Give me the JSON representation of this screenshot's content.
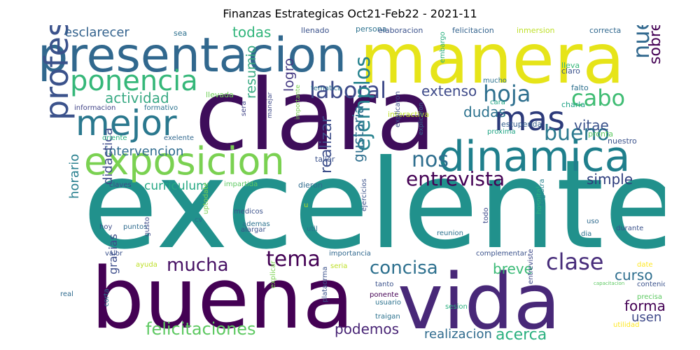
{
  "title": "Finanzas Estrategicas Oct21-Feb22 - 2021-11",
  "words": [
    {
      "text": "excelente",
      "color": "#21918c"
    },
    {
      "text": "buena",
      "color": "#440154"
    },
    {
      "text": "clara",
      "color": "#3e0d5a"
    },
    {
      "text": "vida",
      "color": "#482878"
    },
    {
      "text": "manera",
      "color": "#e6e419"
    },
    {
      "text": "presentacion",
      "color": "#31688e"
    },
    {
      "text": "dinamica",
      "color": "#1f7f8c"
    },
    {
      "text": "exposicion",
      "color": "#7ad151"
    },
    {
      "text": "profesional",
      "color": "#3b528b"
    },
    {
      "text": "mejor",
      "color": "#2a788e"
    },
    {
      "text": "mas",
      "color": "#2c3a7a"
    },
    {
      "text": "ponencia",
      "color": "#35b779"
    },
    {
      "text": "laboral",
      "color": "#3e4a89"
    },
    {
      "text": "hoja",
      "color": "#2e6f8e"
    },
    {
      "text": "cabo",
      "color": "#3fbc73"
    },
    {
      "text": "nuestra",
      "color": "#31688e"
    },
    {
      "text": "sobretodo",
      "color": "#440154"
    },
    {
      "text": "bueno",
      "color": "#2a788e"
    },
    {
      "text": "extenso",
      "color": "#3e4a89"
    },
    {
      "text": "dudas",
      "color": "#2c728e"
    },
    {
      "text": "vitae",
      "color": "#3b528b"
    },
    {
      "text": "nos",
      "color": "#2e6e8e"
    },
    {
      "text": "entrevista",
      "color": "#440154"
    },
    {
      "text": "ejemplos",
      "color": "#26828e"
    },
    {
      "text": "actividad",
      "color": "#38a983"
    },
    {
      "text": "intervencion",
      "color": "#2f6b8e"
    },
    {
      "text": "curriculum",
      "color": "#26a884"
    },
    {
      "text": "resumio",
      "color": "#38a983"
    },
    {
      "text": "logro",
      "color": "#443983"
    },
    {
      "text": "realizar",
      "color": "#3d4e8a"
    },
    {
      "text": "gustaria",
      "color": "#2e6f8e"
    },
    {
      "text": "simple",
      "color": "#2d3c7c"
    },
    {
      "text": "mucha",
      "color": "#471164"
    },
    {
      "text": "tema",
      "color": "#440154"
    },
    {
      "text": "concisa",
      "color": "#2d708e"
    },
    {
      "text": "clase",
      "color": "#472c7a"
    },
    {
      "text": "breve",
      "color": "#3aba76"
    },
    {
      "text": "curso",
      "color": "#2e6e8e"
    },
    {
      "text": "forma",
      "color": "#440154"
    },
    {
      "text": "usen",
      "color": "#3e4989"
    },
    {
      "text": "felicitaciones",
      "color": "#5ec962"
    },
    {
      "text": "podemos",
      "color": "#482475"
    },
    {
      "text": "realizacion",
      "color": "#2f6b8e"
    },
    {
      "text": "acerca",
      "color": "#2ab07f"
    },
    {
      "text": "todas",
      "color": "#31b57b"
    },
    {
      "text": "esclarecer",
      "color": "#33628d"
    },
    {
      "text": "didactica",
      "color": "#3e4a89"
    },
    {
      "text": "horario",
      "color": "#277f8e"
    },
    {
      "text": "gracias",
      "color": "#3d4d8a"
    },
    {
      "text": "sea",
      "color": "#2d708e"
    },
    {
      "text": "llenado",
      "color": "#3b528b"
    },
    {
      "text": "persona",
      "color": "#2c728e"
    },
    {
      "text": "elaboracion",
      "color": "#3b528b"
    },
    {
      "text": "felicitacion",
      "color": "#33638d"
    },
    {
      "text": "inmersion",
      "color": "#bddf26"
    },
    {
      "text": "correcta",
      "color": "#31688e"
    },
    {
      "text": "tematica",
      "color": "#2c728e"
    },
    {
      "text": "embargo",
      "color": "#2ab07f"
    },
    {
      "text": "mucho",
      "color": "#2c728e"
    },
    {
      "text": "lleva",
      "color": "#35b779"
    },
    {
      "text": "claro",
      "color": "#3b528b"
    },
    {
      "text": "charla",
      "color": "#20a386"
    },
    {
      "text": "falto",
      "color": "#2d708e"
    },
    {
      "text": "cara",
      "color": "#22a884"
    },
    {
      "text": "llevada",
      "color": "#6ece58"
    },
    {
      "text": "informacion",
      "color": "#414487"
    },
    {
      "text": "formativo",
      "color": "#2c728e"
    },
    {
      "text": "interactiva",
      "color": "#bddf26"
    },
    {
      "text": "estupenda",
      "color": "#355f8d"
    },
    {
      "text": "proxima",
      "color": "#21a585"
    },
    {
      "text": "pronta",
      "color": "#5ec962"
    },
    {
      "text": "nuestro",
      "color": "#3b528b"
    },
    {
      "text": "oriente",
      "color": "#2ab07f"
    },
    {
      "text": "exelente",
      "color": "#31688e"
    },
    {
      "text": "sera",
      "color": "#414487"
    },
    {
      "text": "manejar",
      "color": "#3e4a89"
    },
    {
      "text": "importante",
      "color": "#7ad151"
    },
    {
      "text": "explicaron",
      "color": "#3d4e8a"
    },
    {
      "text": "explicaron",
      "color": "#31688e"
    },
    {
      "text": "taller",
      "color": "#3b528b"
    },
    {
      "text": "impartida",
      "color": "#5ec962"
    },
    {
      "text": "dieron",
      "color": "#2f6b8e"
    },
    {
      "text": "claves",
      "color": "#3e4a89"
    },
    {
      "text": "u",
      "color": "#bddf26"
    },
    {
      "text": "medicos",
      "color": "#3b528b"
    },
    {
      "text": "ademas",
      "color": "#2c728e"
    },
    {
      "text": "alargar",
      "color": "#3b528b"
    },
    {
      "text": "cv",
      "color": "#2d708e"
    },
    {
      "text": "uptodate",
      "color": "#7ad151"
    },
    {
      "text": "hoy",
      "color": "#3d4e8a"
    },
    {
      "text": "puntos",
      "color": "#2f6b8e"
    },
    {
      "text": "util",
      "color": "#2d708e"
    },
    {
      "text": "ejercicios",
      "color": "#3b528b"
    },
    {
      "text": "reunion",
      "color": "#2c728e"
    },
    {
      "text": "todo",
      "color": "#3e4a89"
    },
    {
      "text": "hospital",
      "color": "#2ab07f"
    },
    {
      "text": "registra",
      "color": "#26828e"
    },
    {
      "text": "uso",
      "color": "#2f6b8e"
    },
    {
      "text": "dia",
      "color": "#2c728e"
    },
    {
      "text": "durante",
      "color": "#3b528b"
    },
    {
      "text": "gusto",
      "color": "#3e4a89"
    },
    {
      "text": "valor",
      "color": "#3b528b"
    },
    {
      "text": "importancia",
      "color": "#31688e"
    },
    {
      "text": "complementar",
      "color": "#3b528b"
    },
    {
      "text": "ayuda",
      "color": "#bddf26"
    },
    {
      "text": "seria",
      "color": "#bddf26"
    },
    {
      "text": "explicar",
      "color": "#7ad151"
    },
    {
      "text": "tanto",
      "color": "#3b528b"
    },
    {
      "text": "entreviste",
      "color": "#3e4a89"
    },
    {
      "text": "capacitacion",
      "color": "#5ec962"
    },
    {
      "text": "date",
      "color": "#fde725"
    },
    {
      "text": "contenido",
      "color": "#3b528b"
    },
    {
      "text": "precisa",
      "color": "#5ec962"
    },
    {
      "text": "real",
      "color": "#2f6b8e"
    },
    {
      "text": "corta",
      "color": "#2c728e"
    },
    {
      "text": "plataorma",
      "color": "#3b528b"
    },
    {
      "text": "ponente",
      "color": "#440154"
    },
    {
      "text": "usuario",
      "color": "#2c728e"
    },
    {
      "text": "sesion",
      "color": "#2ab07f"
    },
    {
      "text": "traigan",
      "color": "#2c728e"
    },
    {
      "text": "utilidad",
      "color": "#fde725"
    }
  ]
}
